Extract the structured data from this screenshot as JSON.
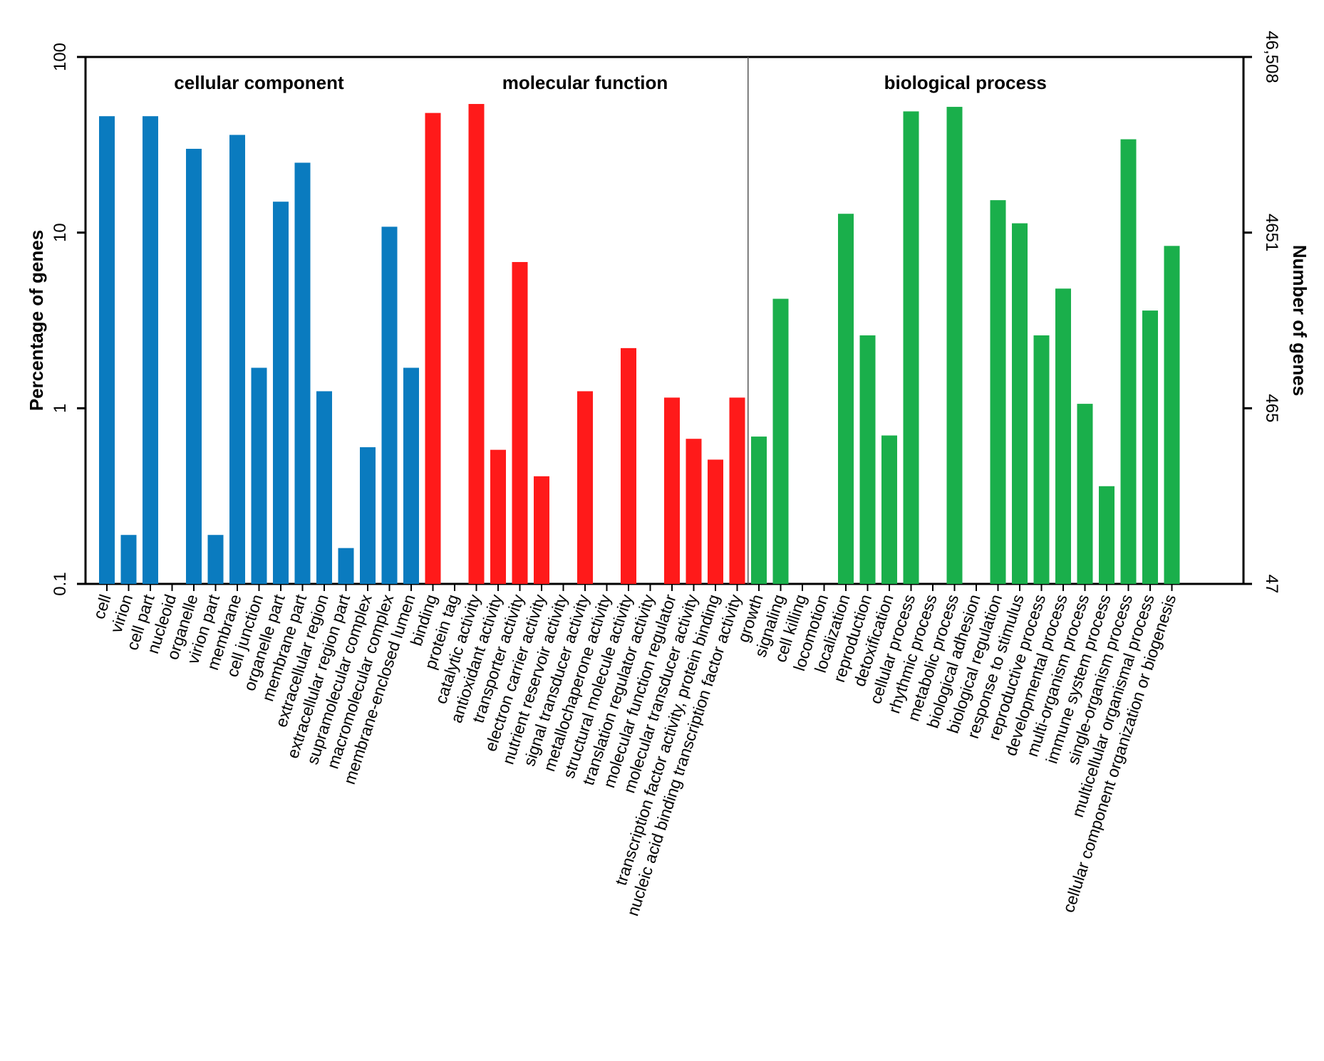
{
  "chart_data": {
    "type": "bar",
    "y_scale": "log",
    "ylim": [
      0.1,
      100
    ],
    "ylabel": "Percentage of genes",
    "y2label": "Number of genes",
    "y_ticks": [
      "0.1",
      "1",
      "10",
      "100"
    ],
    "y2_ticks": [
      "47",
      "465",
      "4651",
      "46,508"
    ],
    "colors": {
      "cellular component": "#0a7bbf",
      "molecular function": "#ff1a1a",
      "biological process": "#1aaf4b"
    },
    "groups": [
      {
        "name": "cellular component",
        "categories": [
          "cell",
          "virion",
          "cell part",
          "nucleoid",
          "organelle",
          "virion part",
          "membrane",
          "cell junction",
          "organelle part",
          "membrane part",
          "extracellular region",
          "extracellular region part",
          "supramolecular complex",
          "macromolecular complex",
          "membrane-enclosed lumen"
        ],
        "values": [
          46,
          0.19,
          46,
          0.1,
          30,
          0.19,
          36,
          1.7,
          15,
          25,
          1.25,
          0.16,
          0.6,
          10.8,
          1.7
        ]
      },
      {
        "name": "molecular function",
        "categories": [
          "binding",
          "protein tag",
          "catalytic activity",
          "antioxidant activity",
          "transporter activity",
          "electron carrier activity",
          "nutrient reservoir activity",
          "signal transducer activity",
          "metallochaperone activity",
          "structural molecule activity",
          "translation regulator activity",
          "molecular function regulator",
          "molecular transducer activity",
          "transcription factor activity, protein binding",
          "nucleic acid binding transcription factor activity"
        ],
        "values": [
          48,
          0.1,
          54,
          0.58,
          6.8,
          0.41,
          0.1,
          1.25,
          0.1,
          2.2,
          0.1,
          1.15,
          0.67,
          0.51,
          1.15
        ]
      },
      {
        "name": "biological process",
        "categories": [
          "growth",
          "signaling",
          "cell killing",
          "locomotion",
          "localization",
          "reproduction",
          "detoxification",
          "cellular process",
          "rhythmic process",
          "metabolic process",
          "biological adhesion",
          "biological regulation",
          "response to stimulus",
          "reproductive process",
          "developmental process",
          "multi-organism process",
          "immune system process",
          "single-organism process",
          "multicellular organismal process",
          "cellular component organization or biogenesis"
        ],
        "values": [
          0.69,
          4.2,
          0.1,
          0.1,
          12.8,
          2.6,
          0.7,
          49,
          0.1,
          52,
          0.1,
          15.3,
          11.3,
          2.6,
          4.8,
          1.06,
          0.36,
          34,
          3.6,
          8.4
        ]
      }
    ]
  }
}
